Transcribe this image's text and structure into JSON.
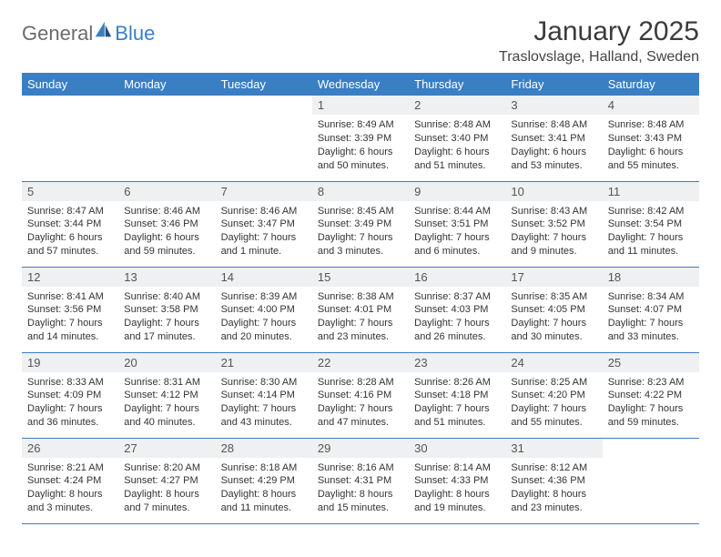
{
  "logo": {
    "general": "General",
    "blue": "Blue",
    "accent_color": "#3a7fc4",
    "gray_color": "#6b6b6b"
  },
  "title": "January 2025",
  "location": "Traslovslage, Halland, Sweden",
  "weekdays": [
    "Sunday",
    "Monday",
    "Tuesday",
    "Wednesday",
    "Thursday",
    "Friday",
    "Saturday"
  ],
  "header_bg": "#3a7fc4",
  "daynum_bg": "#eef0f1",
  "border_color": "#3a7fc4",
  "weeks": [
    [
      null,
      null,
      null,
      {
        "n": "1",
        "sunrise": "Sunrise: 8:49 AM",
        "sunset": "Sunset: 3:39 PM",
        "daylight1": "Daylight: 6 hours",
        "daylight2": "and 50 minutes."
      },
      {
        "n": "2",
        "sunrise": "Sunrise: 8:48 AM",
        "sunset": "Sunset: 3:40 PM",
        "daylight1": "Daylight: 6 hours",
        "daylight2": "and 51 minutes."
      },
      {
        "n": "3",
        "sunrise": "Sunrise: 8:48 AM",
        "sunset": "Sunset: 3:41 PM",
        "daylight1": "Daylight: 6 hours",
        "daylight2": "and 53 minutes."
      },
      {
        "n": "4",
        "sunrise": "Sunrise: 8:48 AM",
        "sunset": "Sunset: 3:43 PM",
        "daylight1": "Daylight: 6 hours",
        "daylight2": "and 55 minutes."
      }
    ],
    [
      {
        "n": "5",
        "sunrise": "Sunrise: 8:47 AM",
        "sunset": "Sunset: 3:44 PM",
        "daylight1": "Daylight: 6 hours",
        "daylight2": "and 57 minutes."
      },
      {
        "n": "6",
        "sunrise": "Sunrise: 8:46 AM",
        "sunset": "Sunset: 3:46 PM",
        "daylight1": "Daylight: 6 hours",
        "daylight2": "and 59 minutes."
      },
      {
        "n": "7",
        "sunrise": "Sunrise: 8:46 AM",
        "sunset": "Sunset: 3:47 PM",
        "daylight1": "Daylight: 7 hours",
        "daylight2": "and 1 minute."
      },
      {
        "n": "8",
        "sunrise": "Sunrise: 8:45 AM",
        "sunset": "Sunset: 3:49 PM",
        "daylight1": "Daylight: 7 hours",
        "daylight2": "and 3 minutes."
      },
      {
        "n": "9",
        "sunrise": "Sunrise: 8:44 AM",
        "sunset": "Sunset: 3:51 PM",
        "daylight1": "Daylight: 7 hours",
        "daylight2": "and 6 minutes."
      },
      {
        "n": "10",
        "sunrise": "Sunrise: 8:43 AM",
        "sunset": "Sunset: 3:52 PM",
        "daylight1": "Daylight: 7 hours",
        "daylight2": "and 9 minutes."
      },
      {
        "n": "11",
        "sunrise": "Sunrise: 8:42 AM",
        "sunset": "Sunset: 3:54 PM",
        "daylight1": "Daylight: 7 hours",
        "daylight2": "and 11 minutes."
      }
    ],
    [
      {
        "n": "12",
        "sunrise": "Sunrise: 8:41 AM",
        "sunset": "Sunset: 3:56 PM",
        "daylight1": "Daylight: 7 hours",
        "daylight2": "and 14 minutes."
      },
      {
        "n": "13",
        "sunrise": "Sunrise: 8:40 AM",
        "sunset": "Sunset: 3:58 PM",
        "daylight1": "Daylight: 7 hours",
        "daylight2": "and 17 minutes."
      },
      {
        "n": "14",
        "sunrise": "Sunrise: 8:39 AM",
        "sunset": "Sunset: 4:00 PM",
        "daylight1": "Daylight: 7 hours",
        "daylight2": "and 20 minutes."
      },
      {
        "n": "15",
        "sunrise": "Sunrise: 8:38 AM",
        "sunset": "Sunset: 4:01 PM",
        "daylight1": "Daylight: 7 hours",
        "daylight2": "and 23 minutes."
      },
      {
        "n": "16",
        "sunrise": "Sunrise: 8:37 AM",
        "sunset": "Sunset: 4:03 PM",
        "daylight1": "Daylight: 7 hours",
        "daylight2": "and 26 minutes."
      },
      {
        "n": "17",
        "sunrise": "Sunrise: 8:35 AM",
        "sunset": "Sunset: 4:05 PM",
        "daylight1": "Daylight: 7 hours",
        "daylight2": "and 30 minutes."
      },
      {
        "n": "18",
        "sunrise": "Sunrise: 8:34 AM",
        "sunset": "Sunset: 4:07 PM",
        "daylight1": "Daylight: 7 hours",
        "daylight2": "and 33 minutes."
      }
    ],
    [
      {
        "n": "19",
        "sunrise": "Sunrise: 8:33 AM",
        "sunset": "Sunset: 4:09 PM",
        "daylight1": "Daylight: 7 hours",
        "daylight2": "and 36 minutes."
      },
      {
        "n": "20",
        "sunrise": "Sunrise: 8:31 AM",
        "sunset": "Sunset: 4:12 PM",
        "daylight1": "Daylight: 7 hours",
        "daylight2": "and 40 minutes."
      },
      {
        "n": "21",
        "sunrise": "Sunrise: 8:30 AM",
        "sunset": "Sunset: 4:14 PM",
        "daylight1": "Daylight: 7 hours",
        "daylight2": "and 43 minutes."
      },
      {
        "n": "22",
        "sunrise": "Sunrise: 8:28 AM",
        "sunset": "Sunset: 4:16 PM",
        "daylight1": "Daylight: 7 hours",
        "daylight2": "and 47 minutes."
      },
      {
        "n": "23",
        "sunrise": "Sunrise: 8:26 AM",
        "sunset": "Sunset: 4:18 PM",
        "daylight1": "Daylight: 7 hours",
        "daylight2": "and 51 minutes."
      },
      {
        "n": "24",
        "sunrise": "Sunrise: 8:25 AM",
        "sunset": "Sunset: 4:20 PM",
        "daylight1": "Daylight: 7 hours",
        "daylight2": "and 55 minutes."
      },
      {
        "n": "25",
        "sunrise": "Sunrise: 8:23 AM",
        "sunset": "Sunset: 4:22 PM",
        "daylight1": "Daylight: 7 hours",
        "daylight2": "and 59 minutes."
      }
    ],
    [
      {
        "n": "26",
        "sunrise": "Sunrise: 8:21 AM",
        "sunset": "Sunset: 4:24 PM",
        "daylight1": "Daylight: 8 hours",
        "daylight2": "and 3 minutes."
      },
      {
        "n": "27",
        "sunrise": "Sunrise: 8:20 AM",
        "sunset": "Sunset: 4:27 PM",
        "daylight1": "Daylight: 8 hours",
        "daylight2": "and 7 minutes."
      },
      {
        "n": "28",
        "sunrise": "Sunrise: 8:18 AM",
        "sunset": "Sunset: 4:29 PM",
        "daylight1": "Daylight: 8 hours",
        "daylight2": "and 11 minutes."
      },
      {
        "n": "29",
        "sunrise": "Sunrise: 8:16 AM",
        "sunset": "Sunset: 4:31 PM",
        "daylight1": "Daylight: 8 hours",
        "daylight2": "and 15 minutes."
      },
      {
        "n": "30",
        "sunrise": "Sunrise: 8:14 AM",
        "sunset": "Sunset: 4:33 PM",
        "daylight1": "Daylight: 8 hours",
        "daylight2": "and 19 minutes."
      },
      {
        "n": "31",
        "sunrise": "Sunrise: 8:12 AM",
        "sunset": "Sunset: 4:36 PM",
        "daylight1": "Daylight: 8 hours",
        "daylight2": "and 23 minutes."
      },
      null
    ]
  ]
}
